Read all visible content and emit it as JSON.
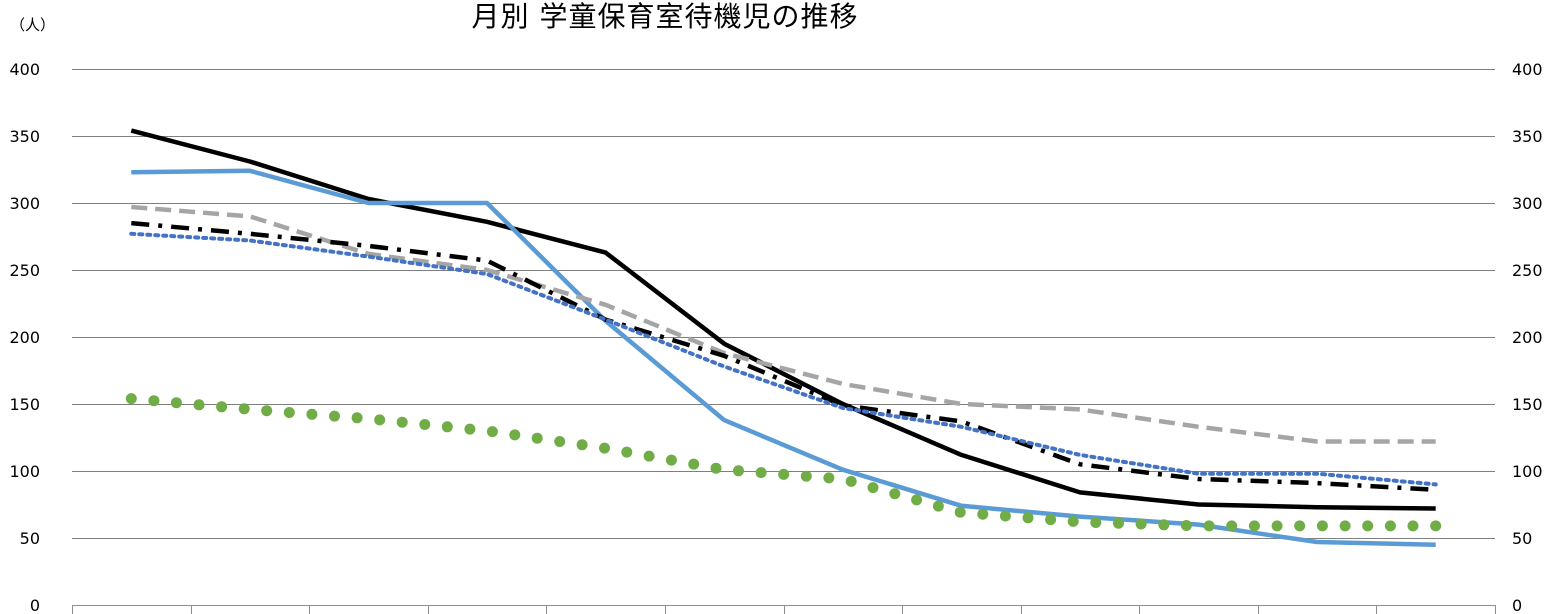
{
  "chart_data": {
    "type": "line",
    "title": "月別 学童保育室待機児の推移",
    "ylabel": "（人）",
    "ylim": [
      0,
      400
    ],
    "yticks": [
      "0",
      "50",
      "100",
      "150",
      "200",
      "250",
      "300",
      "350",
      "400"
    ],
    "yticks_right": [
      "0",
      "50",
      "100",
      "150",
      "200",
      "250",
      "300",
      "350",
      "400"
    ],
    "categories": [
      "",
      "",
      "",
      "",
      "",
      "",
      "",
      "",
      "",
      "",
      "",
      ""
    ],
    "grid": true,
    "series": [
      {
        "style": "solid",
        "color": "#000000",
        "values": [
          354,
          331,
          303,
          286,
          263,
          195,
          150,
          112,
          84,
          75,
          73,
          72
        ]
      },
      {
        "style": "solid",
        "color": "#5b9bd5",
        "values": [
          323,
          324,
          300,
          300,
          212,
          138,
          101,
          74,
          66,
          60,
          47,
          45
        ]
      },
      {
        "style": "dashed",
        "color": "#a5a5a5",
        "values": [
          297,
          290,
          262,
          250,
          224,
          188,
          165,
          150,
          146,
          133,
          122,
          122
        ]
      },
      {
        "style": "dashdot",
        "color": "#000000",
        "values": [
          285,
          277,
          268,
          257,
          213,
          186,
          149,
          137,
          105,
          94,
          91,
          86
        ]
      },
      {
        "style": "dotted",
        "color": "#4472c4",
        "values": [
          277,
          272,
          260,
          247,
          213,
          178,
          147,
          133,
          112,
          98,
          98,
          90
        ]
      },
      {
        "style": "dots",
        "color": "#70ad47",
        "values": [
          154,
          146,
          139,
          130,
          117,
          101,
          94,
          69,
          62,
          59,
          59,
          59
        ]
      }
    ]
  }
}
